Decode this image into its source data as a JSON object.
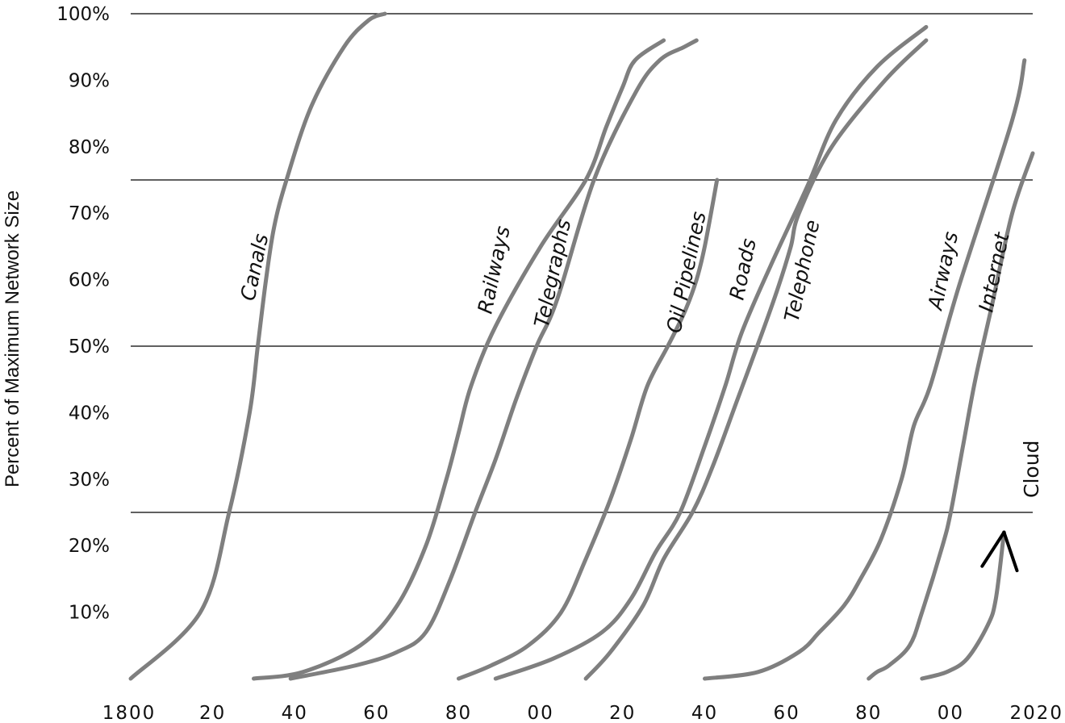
{
  "chart_data": {
    "type": "line",
    "title": "",
    "ylabel": "Percent of Maximum Network Size",
    "xlabel": "",
    "xlim": [
      1800,
      2020
    ],
    "ylim": [
      0,
      100
    ],
    "x_ticks": [
      "1800",
      "20",
      "40",
      "60",
      "80",
      "00",
      "20",
      "40",
      "60",
      "80",
      "00",
      "2020"
    ],
    "y_ticks": [
      "10%",
      "20%",
      "30%",
      "40%",
      "50%",
      "60%",
      "70%",
      "80%",
      "90%",
      "100%"
    ],
    "gridlines_y": [
      25,
      50,
      75,
      100
    ],
    "grid": true,
    "series": [
      {
        "name": "Canals",
        "x": [
          1800,
          1817,
          1824,
          1829,
          1831,
          1833,
          1835,
          1838,
          1844,
          1852,
          1858,
          1862
        ],
        "y": [
          0,
          10,
          25,
          40,
          50,
          60,
          68,
          75,
          86,
          95,
          99,
          100
        ]
      },
      {
        "name": "Railways",
        "x": [
          1830,
          1842,
          1856,
          1865,
          1872,
          1877,
          1880,
          1883,
          1889,
          1900,
          1911,
          1916,
          1920,
          1923,
          1930
        ],
        "y": [
          0,
          1,
          5,
          11,
          20,
          30,
          37,
          44,
          53,
          65,
          75,
          83,
          89,
          93,
          96
        ]
      },
      {
        "name": "Telegraphs",
        "x": [
          1839,
          1855,
          1865,
          1872,
          1878,
          1884,
          1889,
          1894,
          1899,
          1904,
          1913,
          1923,
          1929,
          1935,
          1938
        ],
        "y": [
          0,
          2,
          4,
          7,
          15,
          25,
          33,
          42,
          50,
          57,
          75,
          88,
          93,
          95,
          96
        ]
      },
      {
        "name": "Oil Pipelines",
        "x": [
          1880,
          1888,
          1897,
          1905,
          1911,
          1917,
          1922,
          1926,
          1931,
          1935,
          1938,
          1940,
          1943
        ],
        "y": [
          0,
          2,
          5,
          10,
          18,
          27,
          36,
          44,
          50,
          55,
          60,
          65,
          75
        ]
      },
      {
        "name": "Roads",
        "x": [
          1889,
          1903,
          1915,
          1922,
          1928,
          1934,
          1940,
          1945,
          1949,
          1956,
          1965,
          1972,
          1982,
          1994
        ],
        "y": [
          0,
          3,
          7,
          12,
          19,
          25,
          35,
          44,
          52,
          62,
          74,
          84,
          92,
          98
        ]
      },
      {
        "name": "Telephone",
        "x": [
          1911,
          1917,
          1925,
          1930,
          1937,
          1942,
          1948,
          1954,
          1958,
          1961,
          1963,
          1971,
          1984,
          1994
        ],
        "y": [
          0,
          4,
          11,
          18,
          25,
          32,
          42,
          52,
          59,
          65,
          70,
          80,
          90,
          96
        ]
      },
      {
        "name": "Airways",
        "x": [
          1940,
          1953,
          1963,
          1968,
          1974,
          1978,
          1983,
          1988,
          1991,
          1995,
          2002,
          2015,
          2018
        ],
        "y": [
          0,
          1,
          4,
          7,
          11,
          15,
          21,
          30,
          38,
          44,
          59,
          84,
          93
        ]
      },
      {
        "name": "Internet",
        "x": [
          1980,
          1982,
          1985,
          1990,
          1993,
          1998,
          2000,
          2003,
          2006,
          2010,
          2015,
          2020
        ],
        "y": [
          0,
          1,
          2,
          5,
          10,
          20,
          25,
          35,
          45,
          56,
          70,
          79
        ]
      },
      {
        "name": "Cloud",
        "x": [
          1993,
          1999,
          2004,
          2009,
          2011,
          2013
        ],
        "y": [
          0,
          1,
          3,
          8,
          12,
          22
        ]
      }
    ],
    "series_labels": [
      "Canals",
      "Railways",
      "Telegraphs",
      "Oil Pipelines",
      "Roads",
      "Telephone",
      "Airways",
      "Internet",
      "Cloud"
    ],
    "colors": {
      "curve": "#7f7f7f",
      "cloud": "#000000",
      "grid": "#000000"
    },
    "legend": "none (labels along curves)"
  }
}
